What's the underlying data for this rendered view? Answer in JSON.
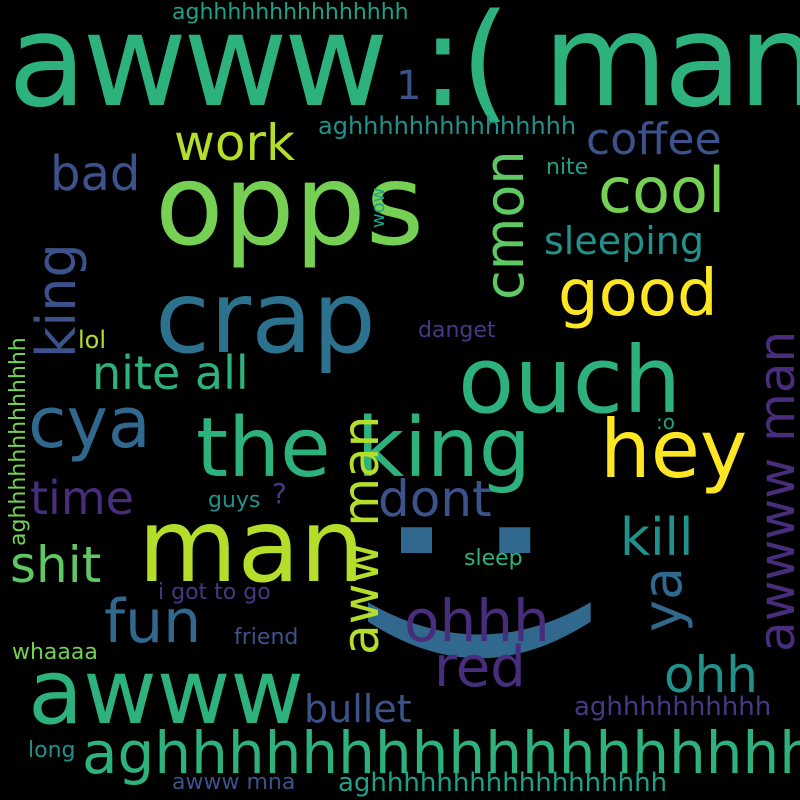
{
  "wordcloud": {
    "background": "#000000",
    "palette": [
      "#2db27d",
      "#75d054",
      "#b5de2b",
      "#fde725",
      "#2c728e",
      "#21918c",
      "#3b528b",
      "#472d7b",
      "#443983",
      "#1fa187"
    ],
    "words": {
      "awww_man_sad": "awww :( man",
      "opps": "opps",
      "crap": "crap",
      "ouch": "ouch",
      "the_king": "the king",
      "hey": "hey",
      "man": "man",
      "awww": "awww",
      "agh_big": "aghhhhhhhhhhhhhhhhhh",
      "smiley": ":)",
      "work": "work",
      "bad": "bad",
      "coffee": "coffee",
      "cool": "cool",
      "cmon": "cmon",
      "king": "king",
      "sleeping": "sleeping",
      "good": "good",
      "nite_all": "nite all",
      "cya": "cya",
      "time": "time",
      "dont": "dont",
      "aww_man": "aww man",
      "shit": "shit",
      "kill": "kill",
      "fun": "fun",
      "ohhh": "ohhh",
      "ya": "ya",
      "awwww_man": "awwww man",
      "red": "red",
      "ohh": "ohh",
      "bullet": "bullet",
      "agh_right": "aghhhhhhhhhh",
      "one": "1",
      "agh_top": "aghhhhhhhhhhhhhhh",
      "agh_2": "aghhhhhhhhhhhhhhh",
      "nite": "nite",
      "wow": "wow",
      "lol": "lol",
      "danget": "danget",
      "agh_left": "aghhhhhhhhhhhhh",
      "o": ":o",
      "guys": "guys",
      "question": "?",
      "sleep": "sleep",
      "i_got_to_go": "i got to go",
      "friend": "friend",
      "whaaaa": "whaaaa",
      "long": "long",
      "awww_mna": "awww mna",
      "agh_bottom": "aghhhhhhhhhhhhhhhhhh"
    }
  }
}
